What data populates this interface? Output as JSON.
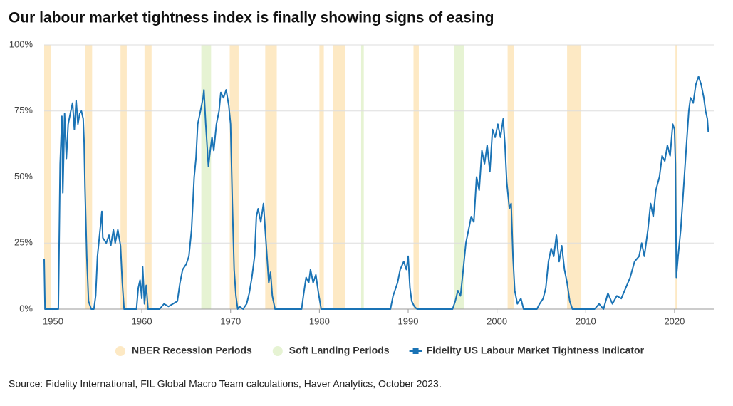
{
  "chart_data": {
    "type": "line",
    "title": "Our labour market tightness index is finally showing signs of easing",
    "source": "Source: Fidelity International, FIL Global Macro Team calculations, Haver Analytics, October 2023.",
    "xlim": [
      1949,
      2024.5
    ],
    "xticks": [
      1950,
      1960,
      1970,
      1980,
      1990,
      2000,
      2010,
      2020
    ],
    "ylim": [
      0,
      100
    ],
    "yticks": [
      {
        "value": 0,
        "label": "0%"
      },
      {
        "value": 25,
        "label": "25%"
      },
      {
        "value": 50,
        "label": "50%"
      },
      {
        "value": 75,
        "label": "75%"
      },
      {
        "value": 100,
        "label": "100%"
      }
    ],
    "grid": true,
    "legend": "bottom",
    "bands": [
      {
        "name": "NBER Recession Periods",
        "color": "#fde9c4",
        "ranges": [
          [
            1948.9,
            1949.8
          ],
          [
            1953.6,
            1954.4
          ],
          [
            1957.6,
            1958.3
          ],
          [
            1960.3,
            1961.1
          ],
          [
            1969.9,
            1970.9
          ],
          [
            1973.9,
            1975.2
          ],
          [
            1980.0,
            1980.5
          ],
          [
            1981.5,
            1982.9
          ],
          [
            1990.6,
            1991.2
          ],
          [
            2001.2,
            2001.9
          ],
          [
            2007.9,
            2009.5
          ],
          [
            2020.1,
            2020.3
          ]
        ]
      },
      {
        "name": "Soft Landing Periods",
        "color": "#e6f3d3",
        "ranges": [
          [
            1966.7,
            1967.8
          ],
          [
            1984.7,
            1985.0
          ],
          [
            1995.2,
            1996.3
          ]
        ]
      }
    ],
    "series": [
      {
        "name": "Fidelity US Labour Market Tightness Indicator",
        "color": "#1a73b5",
        "x": [
          1949.0,
          1949.1,
          1950.6,
          1950.8,
          1951.0,
          1951.1,
          1951.3,
          1951.5,
          1951.7,
          1952.0,
          1952.2,
          1952.4,
          1952.6,
          1952.8,
          1953.0,
          1953.2,
          1953.4,
          1953.5,
          1953.6,
          1953.8,
          1954.0,
          1954.3,
          1954.6,
          1954.8,
          1955.0,
          1955.3,
          1955.5,
          1955.6,
          1956.0,
          1956.3,
          1956.5,
          1956.8,
          1957.0,
          1957.3,
          1957.6,
          1957.8,
          1958.0,
          1959.4,
          1959.6,
          1959.8,
          1960.0,
          1960.1,
          1960.3,
          1960.5,
          1960.7,
          1962.0,
          1962.5,
          1963.0,
          1963.5,
          1964.0,
          1964.3,
          1964.6,
          1965.0,
          1965.3,
          1965.6,
          1965.9,
          1966.1,
          1966.3,
          1966.6,
          1966.9,
          1967.0,
          1967.2,
          1967.5,
          1967.7,
          1967.9,
          1968.1,
          1968.4,
          1968.7,
          1968.9,
          1969.2,
          1969.5,
          1969.8,
          1970.0,
          1970.2,
          1970.4,
          1970.6,
          1970.8,
          1971.0,
          1971.4,
          1971.8,
          1972.1,
          1972.4,
          1972.7,
          1972.9,
          1973.1,
          1973.4,
          1973.7,
          1973.9,
          1974.1,
          1974.3,
          1974.5,
          1974.7,
          1975.0,
          1978.0,
          1978.2,
          1978.5,
          1978.8,
          1979.0,
          1979.3,
          1979.6,
          1979.9,
          1980.2,
          1988.0,
          1988.3,
          1988.8,
          1989.1,
          1989.5,
          1989.8,
          1990.0,
          1990.2,
          1990.4,
          1990.7,
          1991.0,
          1995.0,
          1995.3,
          1995.6,
          1995.9,
          1996.2,
          1996.5,
          1996.8,
          1997.1,
          1997.4,
          1997.7,
          1998.0,
          1998.3,
          1998.6,
          1998.9,
          1999.2,
          1999.5,
          1999.8,
          2000.1,
          2000.4,
          2000.7,
          2000.9,
          2001.1,
          2001.4,
          2001.6,
          2001.8,
          2002.0,
          2002.3,
          2002.7,
          2003.0,
          2004.5,
          2004.8,
          2005.2,
          2005.5,
          2005.8,
          2006.1,
          2006.4,
          2006.7,
          2007.0,
          2007.3,
          2007.6,
          2007.9,
          2008.2,
          2008.5,
          2011.0,
          2011.5,
          2012.0,
          2012.5,
          2013.0,
          2013.5,
          2014.0,
          2014.5,
          2015.0,
          2015.5,
          2016.0,
          2016.3,
          2016.6,
          2017.0,
          2017.3,
          2017.6,
          2017.9,
          2018.3,
          2018.6,
          2018.9,
          2019.2,
          2019.5,
          2019.8,
          2020.0,
          2020.1,
          2020.2,
          2020.4,
          2020.7,
          2021.0,
          2021.3,
          2021.6,
          2021.8,
          2022.1,
          2022.4,
          2022.7,
          2023.0,
          2023.3,
          2023.5,
          2023.7,
          2023.8
        ],
        "values": [
          19,
          0,
          0,
          55,
          73,
          44,
          74,
          57,
          70,
          75,
          78,
          68,
          79,
          70,
          74,
          75,
          72,
          63,
          46,
          20,
          3,
          0,
          0,
          5,
          20,
          30,
          37,
          27,
          25,
          28,
          24,
          30,
          25,
          30,
          24,
          10,
          0,
          0,
          8,
          11,
          4,
          16,
          2,
          9,
          0,
          0,
          2,
          1,
          2,
          3,
          10,
          15,
          17,
          20,
          30,
          50,
          57,
          70,
          75,
          80,
          83,
          70,
          54,
          60,
          65,
          60,
          70,
          75,
          82,
          80,
          83,
          77,
          70,
          40,
          15,
          5,
          0,
          1,
          0,
          2,
          6,
          12,
          20,
          35,
          38,
          33,
          40,
          30,
          20,
          10,
          14,
          5,
          0,
          0,
          5,
          12,
          10,
          15,
          10,
          13,
          6,
          0,
          0,
          5,
          10,
          15,
          18,
          15,
          20,
          8,
          3,
          1,
          0,
          0,
          3,
          7,
          5,
          15,
          25,
          30,
          35,
          33,
          50,
          45,
          60,
          55,
          62,
          52,
          68,
          65,
          70,
          65,
          72,
          62,
          48,
          38,
          40,
          20,
          7,
          2,
          4,
          0,
          0,
          2,
          4,
          8,
          18,
          23,
          20,
          28,
          18,
          24,
          15,
          10,
          3,
          0,
          0,
          2,
          0,
          6,
          2,
          5,
          4,
          8,
          12,
          18,
          20,
          25,
          20,
          30,
          40,
          35,
          45,
          50,
          58,
          56,
          62,
          58,
          70,
          68,
          55,
          12,
          20,
          30,
          45,
          60,
          75,
          80,
          78,
          85,
          88,
          85,
          80,
          75,
          72,
          67
        ]
      }
    ]
  }
}
